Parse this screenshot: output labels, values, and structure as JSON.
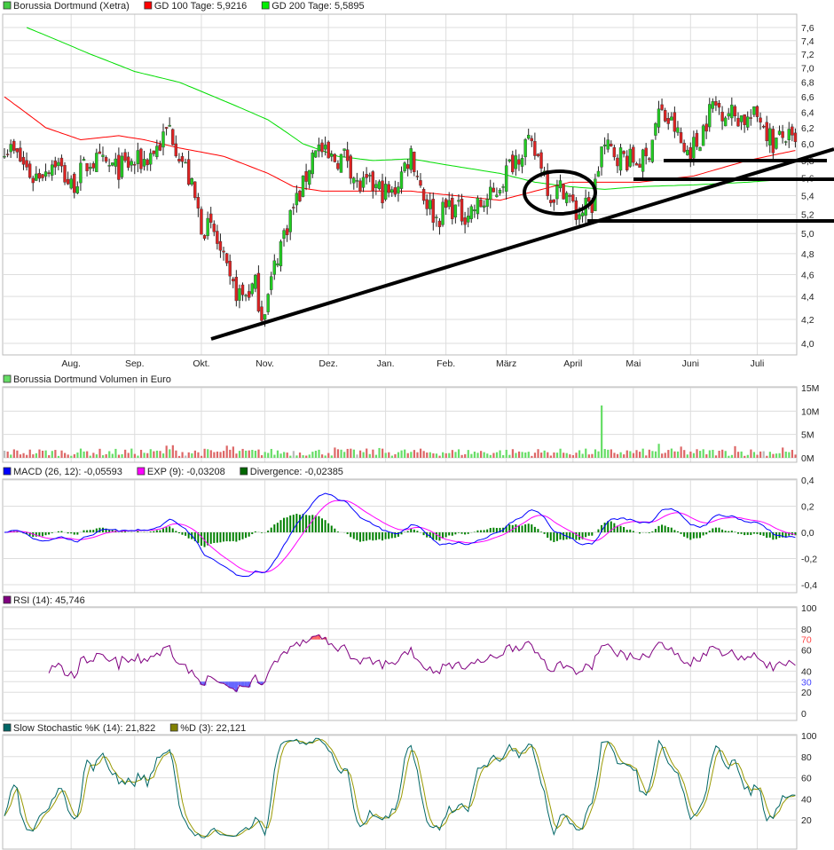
{
  "legends": {
    "price": [
      {
        "label": "Borussia Dortmund (Xetra)",
        "color": "#44cc44"
      },
      {
        "label": "GD 100 Tage: 5,9216",
        "color": "#ff0000"
      },
      {
        "label": "GD 200 Tage: 5,5895",
        "color": "#00ee00"
      }
    ],
    "volume": [
      {
        "label": "Borussia Dortmund Volumen in Euro",
        "color": "#66dd66"
      }
    ],
    "macd": [
      {
        "label": "MACD (26, 12): -0,05593",
        "color": "#0000ff"
      },
      {
        "label": "EXP (9): -0,03208",
        "color": "#ff00ff"
      },
      {
        "label": "Divergence: -0,02385",
        "color": "#006600"
      }
    ],
    "rsi": [
      {
        "label": "RSI (14): 45,746",
        "color": "#800080"
      }
    ],
    "stoch": [
      {
        "label": "Slow Stochastic %K (14): 21,822",
        "color": "#006666"
      },
      {
        "label": "%D (3): 22,121",
        "color": "#808000"
      }
    ]
  },
  "chart_data": [
    {
      "type": "candlestick",
      "title": "Borussia Dortmund (Xetra)",
      "x_unit": "trading day index",
      "x_range": [
        0,
        250
      ],
      "months": [
        {
          "label": "Aug.",
          "day": 21
        },
        {
          "label": "Sep.",
          "day": 41
        },
        {
          "label": "Okt.",
          "day": 62
        },
        {
          "label": "Nov.",
          "day": 82
        },
        {
          "label": "Dez.",
          "day": 102
        },
        {
          "label": "Jan.",
          "day": 120
        },
        {
          "label": "Feb.",
          "day": 139
        },
        {
          "label": "März",
          "day": 158
        },
        {
          "label": "April",
          "day": 179
        },
        {
          "label": "Mai",
          "day": 198
        },
        {
          "label": "Juni",
          "day": 216
        },
        {
          "label": "Juli",
          "day": 237
        }
      ],
      "y_scale": "log",
      "ylim": [
        3.9,
        7.7
      ],
      "y_ticks": [
        "7,6",
        "7,4",
        "7,2",
        "7,0",
        "6,8",
        "6,6",
        "6,4",
        "6,2",
        "6,0",
        "5,8",
        "5,6",
        "5,4",
        "5,2",
        "5,0",
        "4,8",
        "4,6",
        "4,4",
        "4,2",
        "4,0"
      ],
      "close_keypoints": [
        [
          0,
          6.0
        ],
        [
          5,
          5.8
        ],
        [
          9,
          5.6
        ],
        [
          16,
          5.8
        ],
        [
          21,
          5.5
        ],
        [
          27,
          5.8
        ],
        [
          35,
          5.7
        ],
        [
          44,
          5.8
        ],
        [
          49,
          6.0
        ],
        [
          52,
          6.2
        ],
        [
          54,
          6.0
        ],
        [
          58,
          5.6
        ],
        [
          62,
          5.1
        ],
        [
          66,
          5.0
        ],
        [
          71,
          4.5
        ],
        [
          75,
          4.4
        ],
        [
          79,
          4.5
        ],
        [
          81,
          4.25
        ],
        [
          83,
          4.4
        ],
        [
          86,
          4.8
        ],
        [
          90,
          5.2
        ],
        [
          94,
          5.5
        ],
        [
          98,
          6.0
        ],
        [
          102,
          5.8
        ],
        [
          108,
          5.85
        ],
        [
          111,
          5.5
        ],
        [
          116,
          5.5
        ],
        [
          122,
          5.4
        ],
        [
          128,
          5.9
        ],
        [
          132,
          5.4
        ],
        [
          136,
          5.15
        ],
        [
          140,
          5.3
        ],
        [
          144,
          5.2
        ],
        [
          150,
          5.3
        ],
        [
          154,
          5.4
        ],
        [
          160,
          5.8
        ],
        [
          164,
          6.0
        ],
        [
          169,
          5.8
        ],
        [
          172,
          5.4
        ],
        [
          176,
          5.5
        ],
        [
          180,
          5.2
        ],
        [
          185,
          5.3
        ],
        [
          188,
          5.95
        ],
        [
          192,
          5.9
        ],
        [
          197,
          5.8
        ],
        [
          202,
          5.8
        ],
        [
          206,
          6.4
        ],
        [
          211,
          6.2
        ],
        [
          214,
          5.9
        ],
        [
          218,
          6.0
        ],
        [
          223,
          6.5
        ],
        [
          228,
          6.4
        ],
        [
          234,
          6.3
        ],
        [
          238,
          6.35
        ],
        [
          242,
          6.0
        ],
        [
          246,
          6.1
        ],
        [
          249,
          5.95
        ]
      ],
      "gd100_keypoints": [
        [
          0,
          6.6
        ],
        [
          13,
          6.2
        ],
        [
          24,
          6.05
        ],
        [
          36,
          6.1
        ],
        [
          44,
          6.05
        ],
        [
          55,
          5.95
        ],
        [
          69,
          5.85
        ],
        [
          83,
          5.65
        ],
        [
          91,
          5.5
        ],
        [
          100,
          5.45
        ],
        [
          116,
          5.45
        ],
        [
          128,
          5.45
        ],
        [
          142,
          5.4
        ],
        [
          156,
          5.35
        ],
        [
          167,
          5.45
        ],
        [
          178,
          5.55
        ],
        [
          189,
          5.55
        ],
        [
          200,
          5.55
        ],
        [
          217,
          5.62
        ],
        [
          234,
          5.8
        ],
        [
          249,
          5.92
        ]
      ],
      "gd200_keypoints": [
        [
          7,
          7.6
        ],
        [
          27,
          7.2
        ],
        [
          41,
          6.95
        ],
        [
          55,
          6.8
        ],
        [
          69,
          6.55
        ],
        [
          83,
          6.3
        ],
        [
          94,
          6.0
        ],
        [
          105,
          5.85
        ],
        [
          116,
          5.8
        ],
        [
          128,
          5.82
        ],
        [
          139,
          5.75
        ],
        [
          156,
          5.65
        ],
        [
          167,
          5.55
        ],
        [
          178,
          5.5
        ],
        [
          189,
          5.47
        ],
        [
          200,
          5.5
        ],
        [
          217,
          5.52
        ],
        [
          234,
          5.55
        ],
        [
          249,
          5.59
        ]
      ]
    },
    {
      "type": "bar",
      "title": "Borussia Dortmund Volumen in Euro",
      "y_unit": "million EUR",
      "ylim": [
        0,
        15
      ],
      "y_ticks": [
        "15M",
        "10M",
        "5M",
        "0M"
      ],
      "base_range": [
        0.4,
        2.0
      ],
      "spikes": [
        [
          51,
          2.6
        ],
        [
          53,
          2.7
        ],
        [
          70,
          2.6
        ],
        [
          72,
          2.4
        ],
        [
          104,
          2.2
        ],
        [
          118,
          2.1
        ],
        [
          188,
          11.2
        ],
        [
          206,
          3.0
        ],
        [
          213,
          2.4
        ],
        [
          230,
          2.5
        ],
        [
          245,
          2.2
        ]
      ]
    },
    {
      "type": "line",
      "title": "MACD (26, 12)",
      "ylim": [
        -0.4,
        0.4
      ],
      "y_ticks": [
        "0,4",
        "0,2",
        "0,0",
        "-0,2",
        "-0,4"
      ],
      "series": [
        "MACD (26, 12)",
        "EXP (9)",
        "Divergence"
      ]
    },
    {
      "type": "line",
      "title": "RSI (14)",
      "ylim": [
        0,
        100
      ],
      "y_ticks": [
        {
          "v": 100,
          "l": "100"
        },
        {
          "v": 80,
          "l": "80"
        },
        {
          "v": 70,
          "l": "70",
          "c": "#ff4444"
        },
        {
          "v": 60,
          "l": "60"
        },
        {
          "v": 40,
          "l": "40"
        },
        {
          "v": 30,
          "l": "30",
          "c": "#4444ff"
        },
        {
          "v": 20,
          "l": "20"
        },
        {
          "v": 0,
          "l": "0"
        }
      ]
    },
    {
      "type": "line",
      "title": "Slow Stochastic",
      "ylim": [
        0,
        100
      ],
      "y_ticks": [
        "100",
        "80",
        "60",
        "40",
        "20"
      ]
    }
  ]
}
